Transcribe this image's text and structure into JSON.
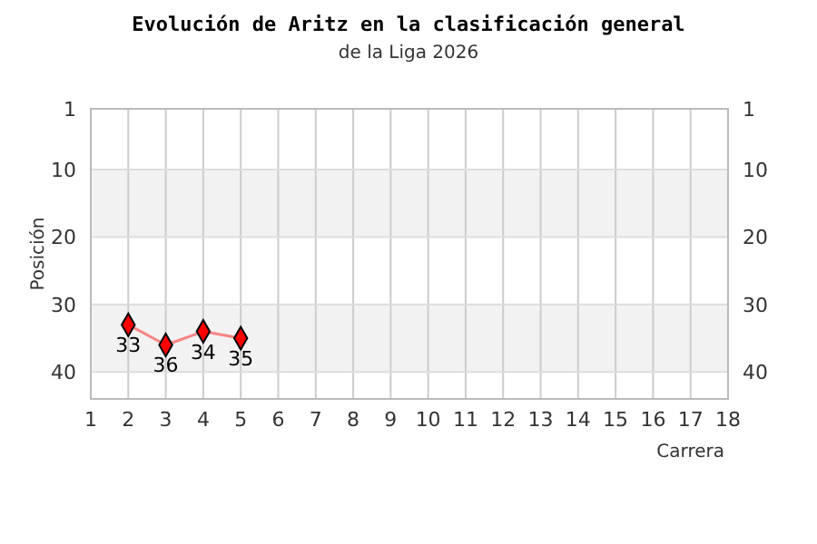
{
  "chart_data": {
    "type": "line",
    "title": "Evolución de Aritz en la clasificación general",
    "subtitle": "de la Liga 2026",
    "xlabel": "Carrera",
    "ylabel": "Posición",
    "x": [
      2,
      3,
      4,
      5
    ],
    "series": [
      {
        "color": "#ff0000",
        "values": [
          33,
          36,
          34,
          35
        ]
      }
    ],
    "xlim": [
      1,
      18
    ],
    "xticks": [
      1,
      2,
      3,
      4,
      5,
      6,
      7,
      8,
      9,
      10,
      11,
      12,
      13,
      14,
      15,
      16,
      17,
      18
    ],
    "ylim": [
      44,
      1
    ],
    "yticks": [
      1,
      10,
      20,
      30,
      40
    ],
    "y2lim": [
      44,
      1
    ],
    "y2ticks": [
      1,
      10,
      20,
      30,
      40
    ],
    "bands": [
      {
        "axis": "y",
        "from": 10,
        "to": 20,
        "color": "#f2f2f2"
      },
      {
        "axis": "y",
        "from": 30,
        "to": 40,
        "color": "#f2f2f2"
      }
    ],
    "grid": true,
    "marker": "diamond",
    "line_style": "solid",
    "data_labels": true
  }
}
